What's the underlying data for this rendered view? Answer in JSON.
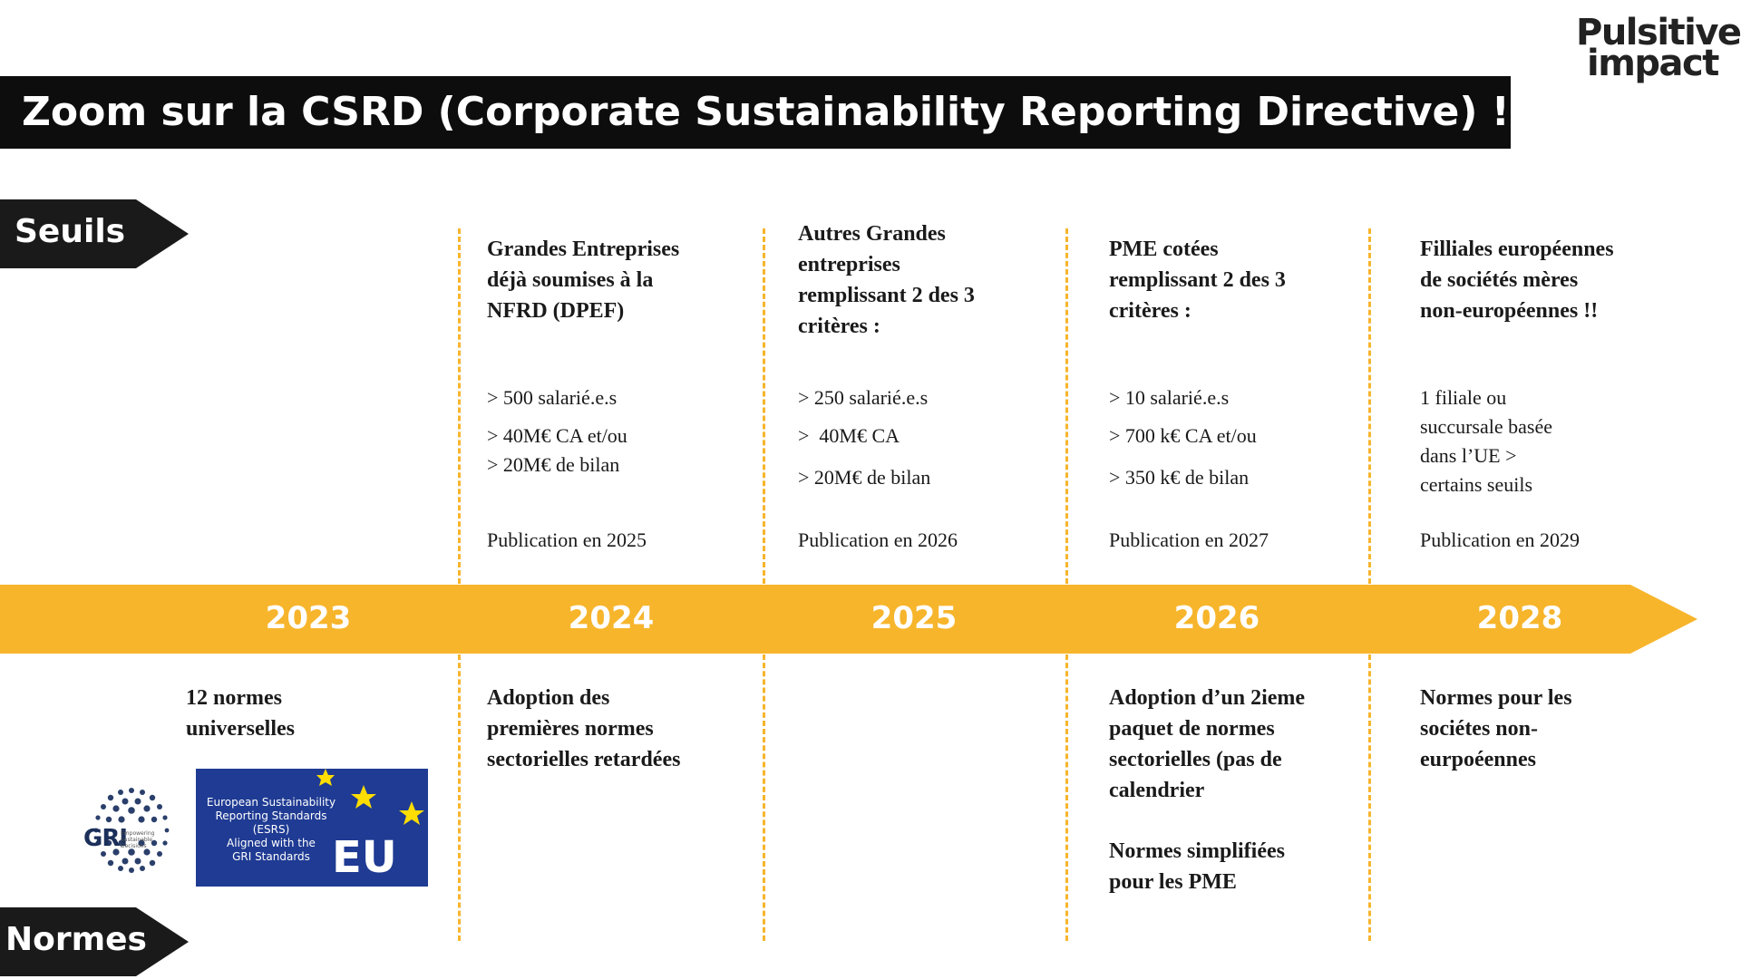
{
  "logo": {
    "line1": "Pulsitive",
    "line2": "impact"
  },
  "title": "Zoom sur la CSRD (Corporate Sustainability Reporting Directive) !",
  "tags": {
    "seuils": "Seuils",
    "normes": "Normes"
  },
  "colors": {
    "timeline": "#F7B52C",
    "dark": "#0D0D0D",
    "esrs_blue": "#1F3B93",
    "eu_star": "#FFDD00"
  },
  "timeline": {
    "years": [
      "2023",
      "2024",
      "2025",
      "2026",
      "2028"
    ]
  },
  "seuils": [
    {
      "heading": [
        "Grandes Entreprises",
        "déjà soumises à la",
        "NFRD (DPEF)"
      ],
      "criteria": [
        "> 500 salarié.e.s",
        "> 40M€ CA et/ou",
        "> 20M€ de bilan"
      ],
      "publication": "Publication en 2025"
    },
    {
      "heading": [
        "Autres Grandes",
        "entreprises",
        "remplissant 2 des 3",
        "critères :"
      ],
      "criteria": [
        "> 250 salarié.e.s",
        ">  40M€ CA",
        "> 20M€ de bilan"
      ],
      "publication": "Publication en 2026"
    },
    {
      "heading": [
        "PME cotées",
        "remplissant 2 des 3",
        "critères :"
      ],
      "criteria": [
        "> 10 salarié.e.s",
        "> 700 k€ CA et/ou",
        "> 350 k€ de bilan"
      ],
      "publication": "Publication en 2027"
    },
    {
      "heading": [
        "Filliales européennes",
        "de sociétés mères",
        "non-européennes !!"
      ],
      "criteria": [
        "1 filiale ou",
        "succursale basée",
        "dans l’UE >",
        "certains seuils"
      ],
      "publication": "Publication en 2029"
    }
  ],
  "normes": {
    "universal": [
      "12 normes",
      "universelles"
    ],
    "col2024": [
      "Adoption des",
      "premières normes",
      "sectorielles retardées"
    ],
    "col2026a": [
      "Adoption d’un 2ieme",
      "paquet de normes",
      "sectorielles (pas de",
      "calendrier"
    ],
    "col2026b": [
      "Normes simplifiées",
      "pour les PME"
    ],
    "col2028": [
      "Normes pour les",
      "sociétes non-",
      "eurpoéennes"
    ]
  },
  "logos": {
    "gri": {
      "name": "GRI",
      "tagline": [
        "Empowering",
        "Sustainable",
        "Decisions"
      ]
    },
    "esrs": {
      "lines": [
        "European Sustainability",
        "Reporting Standards",
        "(ESRS)",
        "Aligned with the",
        "GRI Standards"
      ],
      "eu": "EU"
    }
  }
}
